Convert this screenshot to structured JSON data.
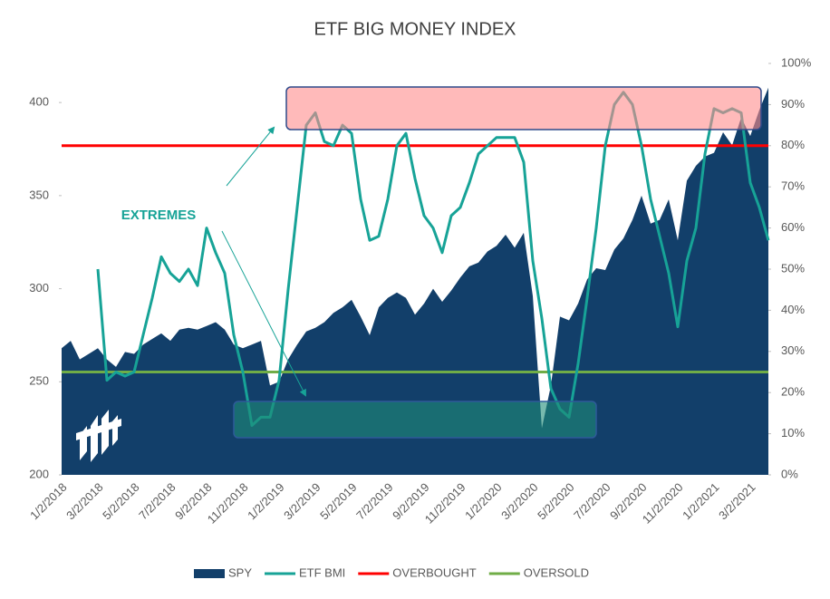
{
  "chart_data": {
    "type": "area-line",
    "title": "ETF BIG MONEY INDEX",
    "categories": [
      "1/2/2018",
      null,
      null,
      null,
      "3/2/2018",
      null,
      null,
      null,
      "5/2/2018",
      null,
      null,
      null,
      "7/2/2018",
      null,
      null,
      null,
      "9/2/2018",
      null,
      null,
      null,
      "11/2/2018",
      null,
      null,
      null,
      "1/2/2019",
      null,
      null,
      null,
      "3/2/2019",
      null,
      null,
      null,
      "5/2/2019",
      null,
      null,
      null,
      "7/2/2019",
      null,
      null,
      null,
      "9/2/2019",
      null,
      null,
      null,
      "11/2/2019",
      null,
      null,
      null,
      "1/2/2020",
      null,
      null,
      null,
      "3/2/2020",
      null,
      null,
      null,
      "5/2/2020",
      null,
      null,
      null,
      "7/2/2020",
      null,
      null,
      null,
      "9/2/2020",
      null,
      null,
      null,
      "11/2/2020",
      null,
      null,
      null,
      "1/2/2021",
      null,
      null,
      null,
      "3/2/2021",
      null,
      null
    ],
    "series": [
      {
        "name": "SPY",
        "color": "#123f6a",
        "axis": "y",
        "values": [
          268,
          272,
          262,
          265,
          268,
          262,
          258,
          266,
          265,
          270,
          273,
          276,
          272,
          278,
          279,
          278,
          280,
          282,
          278,
          270,
          268,
          270,
          272,
          248,
          250,
          262,
          270,
          277,
          279,
          282,
          287,
          290,
          294,
          285,
          275,
          290,
          295,
          298,
          295,
          286,
          292,
          300,
          293,
          299,
          306,
          312,
          314,
          320,
          323,
          329,
          322,
          330,
          296,
          225,
          248,
          285,
          283,
          292,
          305,
          311,
          310,
          321,
          327,
          337,
          350,
          335,
          337,
          348,
          326,
          358,
          366,
          371,
          373,
          384,
          377,
          392,
          382,
          396,
          408
        ]
      },
      {
        "name": "ETF BMI",
        "color": "#17a397",
        "axis": "y2",
        "values": [
          null,
          null,
          null,
          null,
          50,
          23,
          25,
          24,
          25,
          34,
          43,
          53,
          49,
          47,
          50,
          46,
          60,
          54,
          49,
          34,
          25,
          12,
          14,
          14,
          23,
          45,
          65,
          85,
          88,
          81,
          80,
          85,
          83,
          67,
          57,
          58,
          67,
          80,
          83,
          72,
          63,
          60,
          54,
          63,
          65,
          71,
          78,
          80,
          82,
          82,
          82,
          76,
          52,
          38,
          21,
          16,
          14,
          27,
          43,
          60,
          80,
          90,
          93,
          90,
          80,
          67,
          58,
          49,
          36,
          52,
          60,
          78,
          89,
          88,
          89,
          88,
          71,
          65,
          57
        ]
      }
    ],
    "reference_lines": [
      {
        "name": "OVERBOUGHT",
        "value": 80,
        "color": "#ff0000",
        "axis": "y2"
      },
      {
        "name": "OVERSOLD",
        "value": 25,
        "color": "#70ad47",
        "axis": "y2"
      }
    ],
    "annotation": "EXTREMES",
    "ylim": [
      200,
      421
    ],
    "yticks": [
      200,
      250,
      300,
      350,
      400
    ],
    "y2lim": [
      0,
      100
    ],
    "y2ticks": [
      {
        "value": 0,
        "label": "0%"
      },
      {
        "value": 10,
        "label": "10%"
      },
      {
        "value": 20,
        "label": "20%"
      },
      {
        "value": 30,
        "label": "30%"
      },
      {
        "value": 40,
        "label": "40%"
      },
      {
        "value": 50,
        "label": "50%"
      },
      {
        "value": 60,
        "label": "60%"
      },
      {
        "value": 70,
        "label": "70%"
      },
      {
        "value": 80,
        "label": "80%"
      },
      {
        "value": 90,
        "label": "90%"
      },
      {
        "value": 100,
        "label": "100%"
      }
    ],
    "legend": "bottom"
  }
}
